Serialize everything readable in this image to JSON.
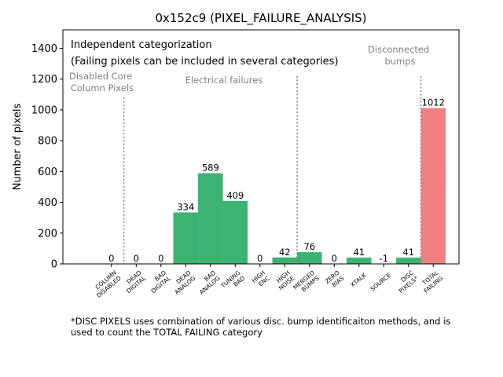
{
  "chart_data": {
    "type": "bar",
    "title": "0x152c9 (PIXEL_FAILURE_ANALYSIS)",
    "ylabel": "Number of pixels",
    "xlabel": "",
    "ylim": [
      0,
      1520
    ],
    "yticks": [
      0,
      200,
      400,
      600,
      800,
      1000,
      1200,
      1400
    ],
    "categories": [
      [
        "COLUMN",
        "DISABLED"
      ],
      [
        "DEAD",
        "DIGITAL"
      ],
      [
        "BAD",
        "DIGITAL"
      ],
      [
        "DEAD",
        "ANALOG"
      ],
      [
        "BAD",
        "ANALOG"
      ],
      [
        "TUNING",
        "BAD"
      ],
      [
        "HIGH",
        "ENC"
      ],
      [
        "HIGH",
        "NOISE"
      ],
      [
        "MERGED",
        "BUMPS"
      ],
      [
        "ZERO",
        "BIAS"
      ],
      [
        "XTALK"
      ],
      [
        "SOURCE"
      ],
      [
        "DISC",
        "PIXELS*"
      ],
      [
        "TOTAL",
        "FAILING"
      ]
    ],
    "values": [
      0,
      0,
      0,
      334,
      589,
      409,
      0,
      42,
      76,
      0,
      41,
      -1,
      41,
      1012
    ],
    "value_labels": [
      "0",
      "0",
      "0",
      "334",
      "589",
      "409",
      "0",
      "42",
      "76",
      "0",
      "41",
      "-1",
      "41",
      "1012"
    ],
    "colors": {
      "category": "#3cb371",
      "total": "#f08080",
      "divider": "#808080",
      "annotation": "#808080"
    },
    "dividers_after_index": [
      0,
      7,
      12
    ],
    "annotations": {
      "line1": "Independent categorization",
      "line2": "(Failing pixels can be included in several categories)",
      "disabled_core": [
        "Disabled Core",
        "Column Pixels"
      ],
      "electrical": "Electrical failures",
      "disconnected": [
        "Disconnected",
        "bumps"
      ]
    },
    "grid": false,
    "legend": "none"
  },
  "footnote": [
    "*DISC PIXELS uses combination of various disc. bump identificaiton methods, and is",
    "used to count the TOTAL FAILING category"
  ]
}
